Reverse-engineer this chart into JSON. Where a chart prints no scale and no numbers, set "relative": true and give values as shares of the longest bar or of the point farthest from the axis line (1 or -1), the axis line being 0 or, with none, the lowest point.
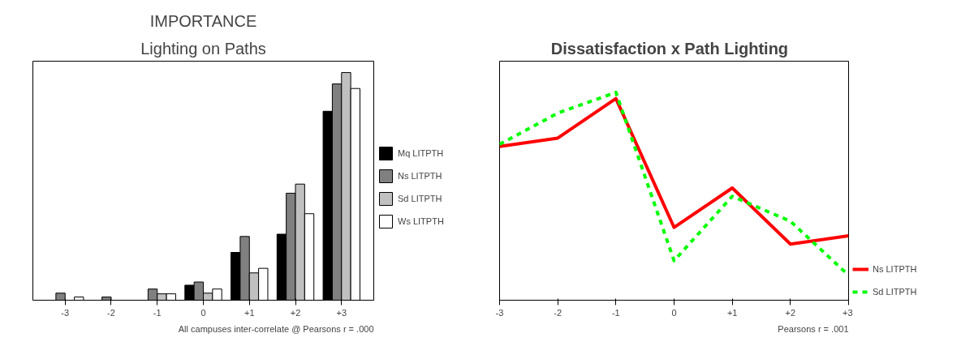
{
  "chart_data": [
    {
      "type": "bar",
      "title": "IMPORTANCE",
      "subtitle": "Lighting on Paths",
      "relative": true,
      "categories": [
        "-3",
        "-2",
        "-1",
        "0",
        "+1",
        "+2",
        "+3"
      ],
      "legend": "right",
      "grid": false,
      "series": [
        {
          "name": "Mq LITPTH",
          "color": "#000000",
          "values": [
            0,
            0,
            0,
            0.066,
            0.21,
            0.29,
            0.83
          ]
        },
        {
          "name": "Ns LITPTH",
          "color": "#808080",
          "values": [
            0.031,
            0.014,
            0.049,
            0.08,
            0.28,
            0.47,
            0.95
          ]
        },
        {
          "name": "Sd LITPTH",
          "color": "#c0c0c0",
          "values": [
            0,
            0,
            0.028,
            0.031,
            0.12,
            0.51,
            1
          ]
        },
        {
          "name": "Ws LITPTH",
          "color": "#ffffff",
          "values": [
            0.014,
            0,
            0.028,
            0.049,
            0.14,
            0.38,
            0.93
          ]
        }
      ],
      "annotations": [
        "All campuses inter-correlate @ Pearsons r = .000"
      ]
    },
    {
      "type": "line",
      "title": "Dissatisfaction  x  Path Lighting",
      "relative": true,
      "categories": [
        "-3",
        "-2",
        "-1",
        "0",
        "+1",
        "+2",
        "+3"
      ],
      "legend": "bottom right",
      "grid": false,
      "series": [
        {
          "name": "Ns LITPTH",
          "color": "#ff0000",
          "line_style": "solid",
          "values": [
            0.74,
            0.78,
            0.97,
            0.35,
            0.54,
            0.27,
            0.31
          ]
        },
        {
          "name": "Sd LITPTH",
          "color": "#00ff00",
          "line_style": "dashed",
          "values": [
            0.75,
            0.9,
            1,
            0.19,
            0.5,
            0.38,
            0.12
          ]
        }
      ],
      "annotations": [
        "Pearsons r = .001"
      ]
    }
  ]
}
